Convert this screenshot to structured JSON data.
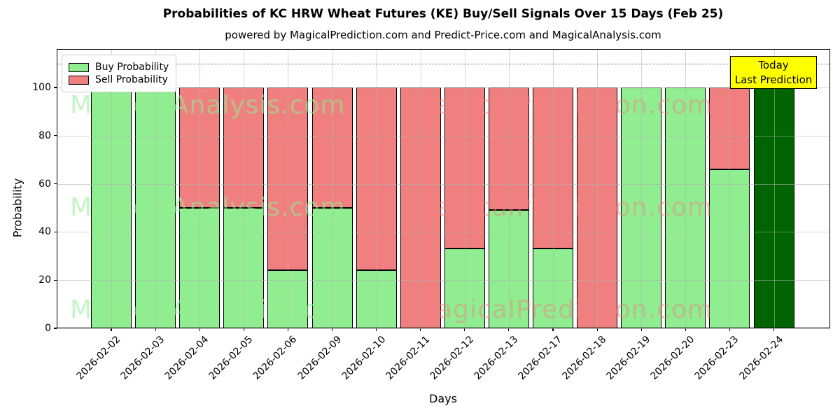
{
  "title": "Probabilities of KC HRW Wheat Futures (KE) Buy/Sell Signals Over 15 Days (Feb 25)",
  "subtitle": "powered by MagicalPrediction.com and Predict-Price.com and MagicalAnalysis.com",
  "legend": {
    "buy_label": "Buy Probability",
    "sell_label": "Sell Probability"
  },
  "annotation": {
    "line1": "Today",
    "line2": "Last Prediction"
  },
  "axes": {
    "ylabel": "Probability",
    "xlabel": "Days",
    "yticks": [
      0,
      20,
      40,
      60,
      80,
      100
    ],
    "ylim": [
      0,
      116
    ],
    "dashed_line_y": 110
  },
  "watermarks": {
    "left": "MagicalAnalysis.com",
    "right": "MagicalPrediction.com"
  },
  "colors": {
    "buy": "#90EE90",
    "sell": "#F08080",
    "today_bar": "#006400",
    "annotation_bg": "#FFFF00",
    "grid": "#b0b0b0",
    "watermark_left": "rgba(144,238,144,0.55)",
    "watermark_right": "rgba(240,128,128,0.45)"
  },
  "chart_data": {
    "type": "bar",
    "stacked": true,
    "title": "Probabilities of KC HRW Wheat Futures (KE) Buy/Sell Signals Over 15 Days (Feb 25)",
    "xlabel": "Days",
    "ylabel": "Probability",
    "ylim": [
      0,
      116
    ],
    "yticks": [
      0,
      20,
      40,
      60,
      80,
      100
    ],
    "grid": true,
    "legend_position": "upper left",
    "dashed_hline": 110,
    "categories": [
      "2026-02-02",
      "2026-02-03",
      "2026-02-04",
      "2026-02-05",
      "2026-02-06",
      "2026-02-09",
      "2026-02-10",
      "2026-02-11",
      "2026-02-12",
      "2026-02-13",
      "2026-02-17",
      "2026-02-18",
      "2026-02-19",
      "2026-02-20",
      "2026-02-23",
      "2026-02-24"
    ],
    "series": [
      {
        "name": "Buy Probability",
        "color": "#90EE90",
        "values": [
          100,
          100,
          50,
          50,
          24,
          50,
          24,
          0,
          33,
          49,
          33,
          0,
          100,
          100,
          66,
          100
        ]
      },
      {
        "name": "Sell Probability",
        "color": "#F08080",
        "values": [
          0,
          0,
          50,
          50,
          76,
          50,
          76,
          100,
          67,
          51,
          67,
          100,
          0,
          0,
          34,
          0
        ]
      }
    ],
    "highlight": {
      "index": 15,
      "color": "#006400",
      "label": "Today Last Prediction"
    }
  }
}
